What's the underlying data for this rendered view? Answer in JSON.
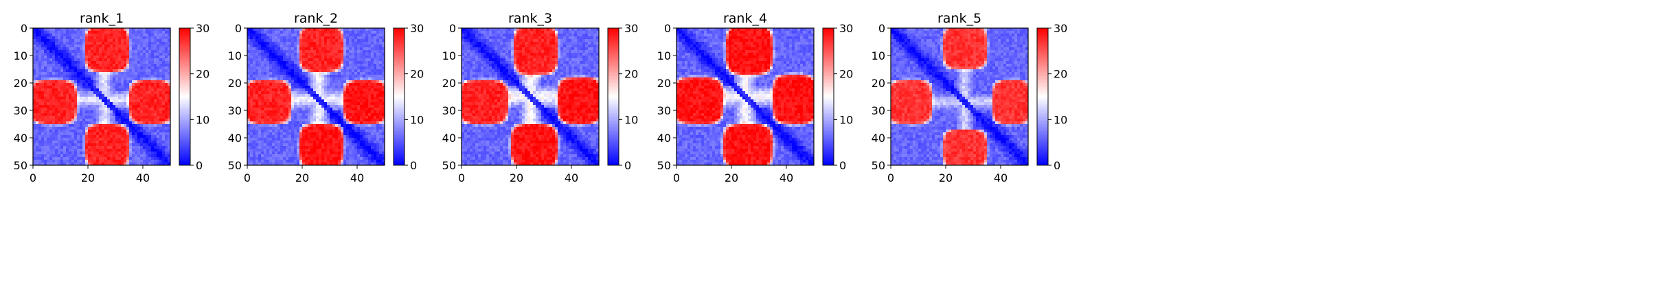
{
  "figure": {
    "colormap": "bwr",
    "colormap_colors": [
      "#0000ff",
      "#ffffff",
      "#ff0000"
    ]
  },
  "chart_data": [
    {
      "type": "heatmap",
      "title": "rank_1",
      "xlabel": "",
      "ylabel": "",
      "xlim": [
        0,
        50
      ],
      "ylim": [
        50,
        0
      ],
      "x_ticks": [
        "0",
        "20",
        "40"
      ],
      "y_ticks": [
        "0",
        "10",
        "20",
        "30",
        "40",
        "50"
      ],
      "colorbar": {
        "range": [
          0,
          30
        ],
        "ticks": [
          "0",
          "10",
          "20",
          "30"
        ]
      },
      "matrix_size": 50,
      "features": {
        "diagonal_value": 0,
        "off_diagonal_base": 5,
        "contact_blocks": [
          {
            "rows": [
              20,
              34
            ],
            "cols": [
              0,
              15
            ],
            "value": 28
          },
          {
            "rows": [
              0,
              15
            ],
            "cols": [
              20,
              34
            ],
            "value": 28
          },
          {
            "rows": [
              20,
              34
            ],
            "cols": [
              36,
              50
            ],
            "value": 28
          },
          {
            "rows": [
              36,
              50
            ],
            "cols": [
              20,
              34
            ],
            "value": 28
          }
        ],
        "white_band_center": 26,
        "white_band_value": 14
      }
    },
    {
      "type": "heatmap",
      "title": "rank_2",
      "xlabel": "",
      "ylabel": "",
      "xlim": [
        0,
        50
      ],
      "ylim": [
        50,
        0
      ],
      "x_ticks": [
        "0",
        "20",
        "40"
      ],
      "y_ticks": [
        "0",
        "10",
        "20",
        "30",
        "40",
        "50"
      ],
      "colorbar": {
        "range": [
          0,
          30
        ],
        "ticks": [
          "0",
          "10",
          "20",
          "30"
        ]
      },
      "matrix_size": 50,
      "features": {
        "diagonal_value": 0,
        "off_diagonal_base": 5,
        "contact_blocks": [
          {
            "rows": [
              20,
              34
            ],
            "cols": [
              0,
              15
            ],
            "value": 28
          },
          {
            "rows": [
              0,
              15
            ],
            "cols": [
              20,
              34
            ],
            "value": 28
          },
          {
            "rows": [
              20,
              34
            ],
            "cols": [
              36,
              50
            ],
            "value": 29
          },
          {
            "rows": [
              36,
              50
            ],
            "cols": [
              20,
              34
            ],
            "value": 29
          }
        ],
        "white_band_center": 26,
        "white_band_value": 15
      }
    },
    {
      "type": "heatmap",
      "title": "rank_3",
      "xlabel": "",
      "ylabel": "",
      "xlim": [
        0,
        50
      ],
      "ylim": [
        50,
        0
      ],
      "x_ticks": [
        "0",
        "20",
        "40"
      ],
      "y_ticks": [
        "0",
        "10",
        "20",
        "30",
        "40",
        "50"
      ],
      "colorbar": {
        "range": [
          0,
          30
        ],
        "ticks": [
          "0",
          "10",
          "20",
          "30"
        ]
      },
      "matrix_size": 50,
      "features": {
        "diagonal_value": 0,
        "off_diagonal_base": 5,
        "contact_blocks": [
          {
            "rows": [
              20,
              34
            ],
            "cols": [
              0,
              16
            ],
            "value": 28
          },
          {
            "rows": [
              0,
              16
            ],
            "cols": [
              20,
              34
            ],
            "value": 28
          },
          {
            "rows": [
              19,
              34
            ],
            "cols": [
              36,
              50
            ],
            "value": 29
          },
          {
            "rows": [
              36,
              50
            ],
            "cols": [
              19,
              34
            ],
            "value": 29
          }
        ],
        "white_band_center": 25,
        "white_band_value": 16
      }
    },
    {
      "type": "heatmap",
      "title": "rank_4",
      "xlabel": "",
      "ylabel": "",
      "xlim": [
        0,
        50
      ],
      "ylim": [
        50,
        0
      ],
      "x_ticks": [
        "0",
        "20",
        "40"
      ],
      "y_ticks": [
        "0",
        "10",
        "20",
        "30",
        "40",
        "50"
      ],
      "colorbar": {
        "range": [
          0,
          30
        ],
        "ticks": [
          "0",
          "10",
          "20",
          "30"
        ]
      },
      "matrix_size": 50,
      "features": {
        "diagonal_value": 0,
        "off_diagonal_base": 5,
        "contact_blocks": [
          {
            "rows": [
              19,
              34
            ],
            "cols": [
              0,
              16
            ],
            "value": 29
          },
          {
            "rows": [
              0,
              16
            ],
            "cols": [
              19,
              34
            ],
            "value": 29
          },
          {
            "rows": [
              18,
              34
            ],
            "cols": [
              36,
              50
            ],
            "value": 29
          },
          {
            "rows": [
              36,
              50
            ],
            "cols": [
              18,
              34
            ],
            "value": 29
          }
        ],
        "white_band_center": 25,
        "white_band_value": 16
      }
    },
    {
      "type": "heatmap",
      "title": "rank_5",
      "xlabel": "",
      "ylabel": "",
      "xlim": [
        0,
        50
      ],
      "ylim": [
        50,
        0
      ],
      "x_ticks": [
        "0",
        "20",
        "40"
      ],
      "y_ticks": [
        "0",
        "10",
        "20",
        "30",
        "40",
        "50"
      ],
      "colorbar": {
        "range": [
          0,
          30
        ],
        "ticks": [
          "0",
          "10",
          "20",
          "30"
        ]
      },
      "matrix_size": 50,
      "features": {
        "diagonal_value": 0,
        "off_diagonal_base": 5,
        "contact_blocks": [
          {
            "rows": [
              20,
              34
            ],
            "cols": [
              0,
              14
            ],
            "value": 27
          },
          {
            "rows": [
              0,
              14
            ],
            "cols": [
              20,
              34
            ],
            "value": 27
          },
          {
            "rows": [
              20,
              34
            ],
            "cols": [
              38,
              50
            ],
            "value": 27
          },
          {
            "rows": [
              38,
              50
            ],
            "cols": [
              20,
              34
            ],
            "value": 27
          }
        ],
        "white_band_center": 27,
        "white_band_value": 13
      }
    }
  ]
}
